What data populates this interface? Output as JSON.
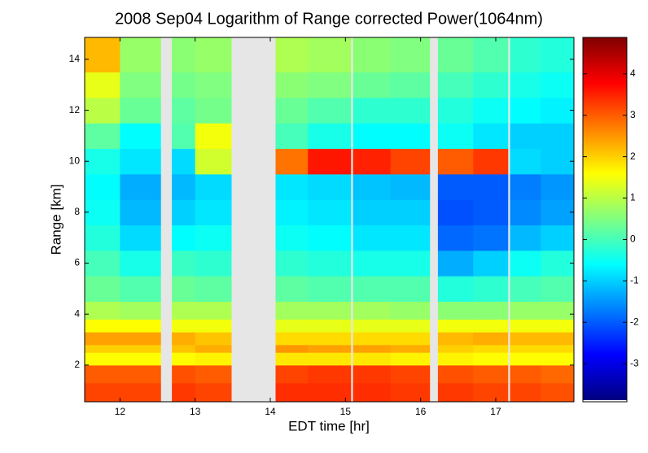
{
  "chart_data": {
    "type": "heatmap",
    "title": "2008 Sep04  Logarithm of Range corrected Power(1064nm)",
    "xlabel": "EDT time [hr]",
    "ylabel": "Range [km]",
    "colormap": "jet",
    "missing_color": "#e6e6e6",
    "xlim": [
      11.53,
      18.04
    ],
    "xticks": [
      12,
      13,
      14,
      15,
      16,
      17
    ],
    "ylim": [
      0.56,
      14.86
    ],
    "yticks": [
      2,
      4,
      6,
      8,
      10,
      12,
      14
    ],
    "clim": [
      -3.88,
      4.88
    ],
    "cticks": [
      -3,
      -2,
      -1,
      0,
      1,
      2,
      3,
      4
    ],
    "x_edges": [
      11.53,
      12.0,
      12.54,
      12.69,
      13.0,
      13.48,
      14.07,
      14.5,
      15.07,
      15.1,
      15.6,
      16.12,
      16.23,
      16.7,
      17.16,
      17.19,
      17.6,
      18.04
    ],
    "y_edges": [
      0.56,
      1.3,
      2.0,
      2.5,
      2.8,
      3.3,
      3.8,
      4.5,
      5.5,
      6.5,
      7.5,
      8.5,
      9.5,
      10.5,
      11.5,
      12.5,
      13.5,
      14.86
    ],
    "z": [
      [
        3.2,
        3.2,
        null,
        3.3,
        3.2,
        null,
        3.4,
        3.4,
        null,
        3.4,
        3.3,
        null,
        3.3,
        3.2,
        null,
        3.2,
        3.1
      ],
      [
        3.0,
        3.0,
        null,
        3.1,
        3.0,
        null,
        3.2,
        3.3,
        null,
        3.3,
        3.2,
        null,
        3.1,
        3.0,
        null,
        3.0,
        2.9
      ],
      [
        1.6,
        1.6,
        null,
        1.6,
        1.7,
        null,
        1.8,
        1.8,
        null,
        1.8,
        1.7,
        null,
        1.7,
        1.6,
        null,
        1.6,
        1.6
      ],
      [
        2.0,
        2.0,
        null,
        2.1,
        2.3,
        null,
        2.5,
        2.4,
        null,
        2.4,
        2.3,
        null,
        2.0,
        1.9,
        null,
        1.9,
        1.9
      ],
      [
        2.4,
        2.4,
        null,
        2.3,
        2.1,
        null,
        1.9,
        1.9,
        null,
        1.9,
        1.9,
        null,
        2.2,
        2.3,
        null,
        2.2,
        2.2
      ],
      [
        1.6,
        1.6,
        null,
        1.5,
        1.5,
        null,
        1.4,
        1.4,
        null,
        1.4,
        1.4,
        null,
        1.5,
        1.5,
        null,
        1.5,
        1.5
      ],
      [
        0.9,
        0.8,
        null,
        0.9,
        0.9,
        null,
        0.8,
        0.8,
        null,
        0.8,
        0.7,
        null,
        0.6,
        0.6,
        null,
        0.7,
        0.7
      ],
      [
        0.3,
        0.1,
        null,
        0.3,
        0.2,
        null,
        0.2,
        0.1,
        null,
        0.1,
        0.1,
        null,
        -0.3,
        -0.2,
        null,
        0,
        0.1
      ],
      [
        0,
        -0.4,
        null,
        -0.1,
        -0.2,
        null,
        -0.2,
        -0.3,
        null,
        -0.4,
        -0.4,
        null,
        -1.3,
        -1.0,
        null,
        -0.5,
        -0.3
      ],
      [
        -0.3,
        -0.9,
        null,
        -0.6,
        -0.5,
        null,
        -0.5,
        -0.6,
        null,
        -0.8,
        -0.8,
        null,
        -1.9,
        -1.8,
        null,
        -1.2,
        -1.0
      ],
      [
        -0.5,
        -1.2,
        null,
        -1.0,
        -0.8,
        null,
        -0.7,
        -0.8,
        null,
        -1.0,
        -1.0,
        null,
        -2.1,
        -2.0,
        null,
        -1.6,
        -1.4
      ],
      [
        -0.6,
        -1.3,
        null,
        -1.2,
        -0.9,
        null,
        -0.8,
        -0.9,
        null,
        -1.1,
        -1.2,
        null,
        -2.0,
        -2.0,
        null,
        -1.7,
        -1.5
      ],
      [
        -0.4,
        -0.8,
        null,
        -0.9,
        1.2,
        null,
        2.8,
        3.6,
        null,
        3.5,
        3.2,
        null,
        3.0,
        3.3,
        null,
        -0.9,
        -1.0
      ],
      [
        0.2,
        -0.6,
        null,
        0.1,
        1.5,
        null,
        0.0,
        -0.4,
        null,
        -0.6,
        -0.6,
        null,
        -0.5,
        -0.8,
        null,
        -1.0,
        -1.0
      ],
      [
        1.0,
        0.3,
        null,
        0.2,
        0.4,
        null,
        0.3,
        0.1,
        null,
        -0.2,
        -0.2,
        null,
        -0.3,
        -0.5,
        null,
        -0.6,
        -0.7
      ],
      [
        1.4,
        0.5,
        null,
        0.4,
        0.5,
        null,
        0.6,
        0.5,
        null,
        0.3,
        0.2,
        null,
        0.0,
        -0.2,
        null,
        -0.4,
        -0.5
      ],
      [
        2.2,
        0.7,
        null,
        0.6,
        0.7,
        null,
        0.9,
        0.8,
        null,
        0.6,
        0.5,
        null,
        0.3,
        0.1,
        null,
        -0.2,
        -0.3
      ]
    ]
  }
}
